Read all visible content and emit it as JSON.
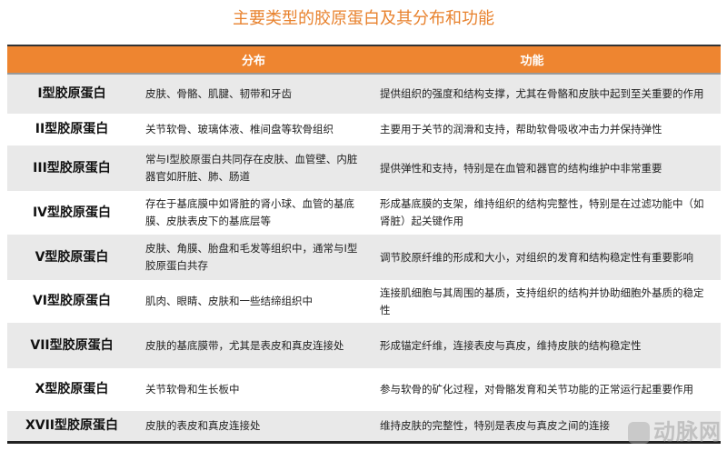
{
  "title": "主要类型的胶原蛋白及其分布和功能",
  "headers": {
    "type": "",
    "distribution": "分布",
    "function": "功能"
  },
  "rows": [
    {
      "type": "I型胶原蛋白",
      "distribution": "皮肤、骨骼、肌腱、韧带和牙齿",
      "function": "提供组织的强度和结构支撑，尤其在骨骼和皮肤中起到至关重要的作用"
    },
    {
      "type": "II型胶原蛋白",
      "distribution": "关节软骨、玻璃体液、椎间盘等软骨组织",
      "function": "主要用于关节的润滑和支持，帮助软骨吸收冲击力并保持弹性"
    },
    {
      "type": "III型胶原蛋白",
      "distribution": "常与I型胶原蛋白共同存在皮肤、血管壁、内脏器官如肝脏、肺、肠道",
      "function": "提供弹性和支持，特别是在血管和器官的结构维护中非常重要"
    },
    {
      "type": "IV型胶原蛋白",
      "distribution": "存在于基底膜中如肾脏的肾小球、血管的基底膜、皮肤表皮下的基底层等",
      "function": "形成基底膜的支架，维持组织的结构完整性，特别是在过滤功能中（如肾脏）起关键作用"
    },
    {
      "type": "V型胶原蛋白",
      "distribution": "皮肤、角膜、胎盘和毛发等组织中，通常与I型胶原蛋白共存",
      "function": "调节胶原纤维的形成和大小，对组织的发育和结构稳定性有重要影响"
    },
    {
      "type": "VI型胶原蛋白",
      "distribution": "肌肉、眼睛、皮肤和一些结缔组织中",
      "function": "连接肌细胞与其周围的基质，支持组织的结构并协助细胞外基质的稳定性"
    },
    {
      "type": "VII型胶原蛋白",
      "distribution": "皮肤的基底膜带，尤其是表皮和真皮连接处",
      "function": "形成锚定纤维，连接表皮与真皮，维持皮肤的结构稳定性"
    },
    {
      "type": "X型胶原蛋白",
      "distribution": "关节软骨和生长板中",
      "function": "参与软骨的矿化过程，对骨骼发育和关节功能的正常运行起重要作用"
    },
    {
      "type": "XVII型胶原蛋白",
      "distribution": "皮肤的表皮和真皮连接处",
      "function": "维持皮肤的完整性，特别是表皮与真皮之间的连接"
    }
  ],
  "watermark": "动脉网",
  "colors": {
    "accent": "#ee8530",
    "title": "#e8822e",
    "stripe": "#e9e9e9"
  }
}
